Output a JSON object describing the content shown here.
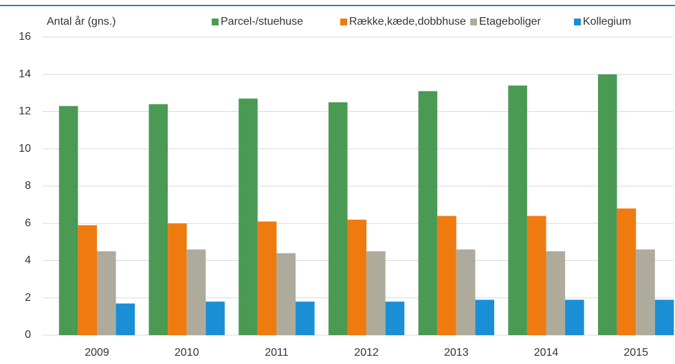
{
  "chart_data": {
    "type": "bar",
    "y_label": "Antal år (gns.)",
    "categories": [
      "2009",
      "2010",
      "2011",
      "2012",
      "2013",
      "2014",
      "2015"
    ],
    "series": [
      {
        "name": "Parcel-/stuehuse",
        "color": "#4a9a54",
        "values": [
          12.3,
          12.4,
          12.7,
          12.5,
          13.1,
          13.4,
          14.0
        ]
      },
      {
        "name": "Række,kæde,dobbhuse",
        "color": "#ef7b10",
        "values": [
          5.9,
          6.0,
          6.1,
          6.2,
          6.4,
          6.4,
          6.8
        ]
      },
      {
        "name": "Etageboliger",
        "color": "#aeab9c",
        "values": [
          4.5,
          4.6,
          4.4,
          4.5,
          4.6,
          4.5,
          4.6
        ]
      },
      {
        "name": "Kollegium",
        "color": "#1a8fd6",
        "values": [
          1.7,
          1.8,
          1.8,
          1.8,
          1.9,
          1.9,
          1.9
        ]
      }
    ],
    "ylim": [
      0,
      16
    ],
    "yticks": [
      0,
      2,
      4,
      6,
      8,
      10,
      12,
      14,
      16
    ],
    "grid": true,
    "legend": "top"
  }
}
